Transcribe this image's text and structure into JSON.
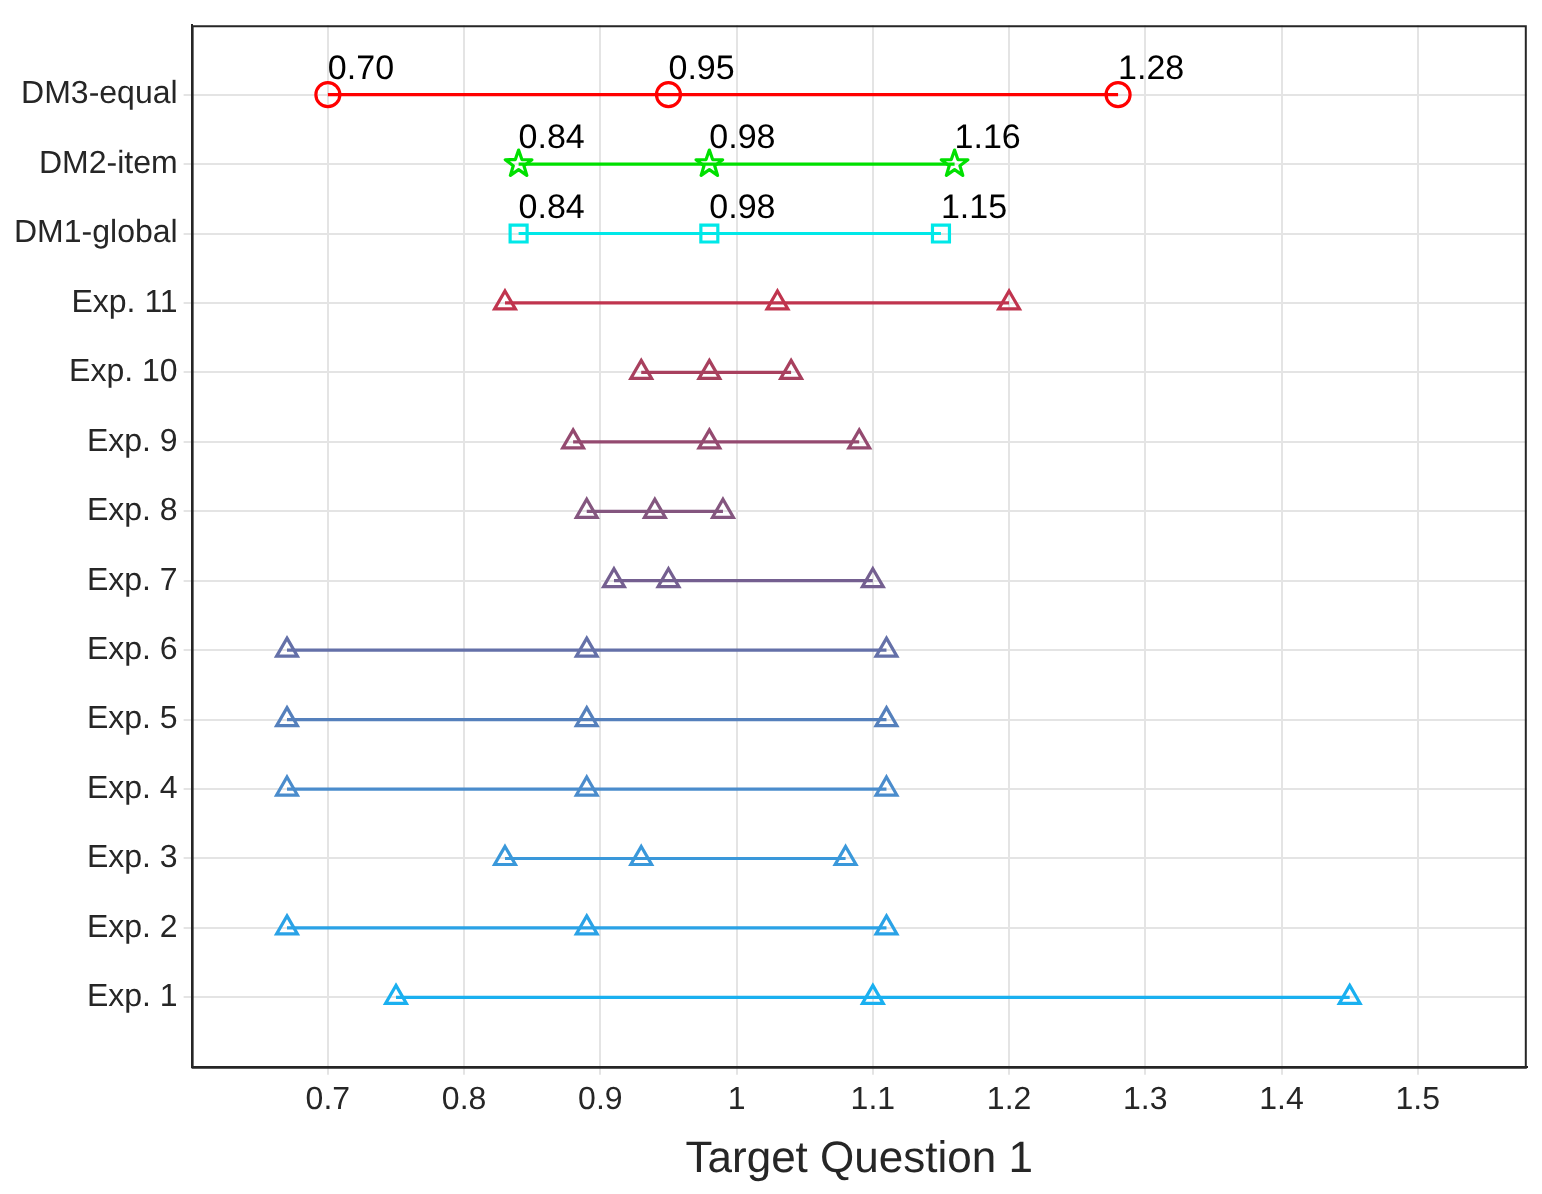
{
  "chart_data": {
    "type": "line",
    "orientation": "horizontal",
    "xlabel": "Target Question 1",
    "categories": [
      "DM3-equal",
      "DM2-item",
      "DM1-global",
      "Exp. 11",
      "Exp. 10",
      "Exp. 9",
      "Exp. 8",
      "Exp. 7",
      "Exp. 6",
      "Exp. 5",
      "Exp. 4",
      "Exp. 3",
      "Exp. 2",
      "Exp. 1"
    ],
    "xlim": [
      0.6,
      1.58
    ],
    "xticks": [
      0.7,
      0.8,
      0.9,
      1,
      1.1,
      1.2,
      1.3,
      1.4,
      1.5
    ],
    "grid": true,
    "legend": false,
    "series": [
      {
        "marker": "circle",
        "color": "#ff0000",
        "x": [
          "DM3-equal",
          "DM3-equal",
          "DM3-equal"
        ],
        "values": [
          0.7,
          0.95,
          1.28
        ]
      },
      {
        "marker": "star",
        "color": "#00e000",
        "x": [
          "DM2-item",
          "DM2-item",
          "DM2-item"
        ],
        "values": [
          0.84,
          0.98,
          1.16
        ]
      },
      {
        "marker": "square",
        "color": "#00e8e8",
        "x": [
          "DM1-global",
          "DM1-global",
          "DM1-global"
        ],
        "values": [
          0.84,
          0.98,
          1.15
        ]
      },
      {
        "marker": "triangle",
        "color": "#c0344e",
        "x": [
          "Exp. 11",
          "Exp. 11",
          "Exp. 11"
        ],
        "values": [
          0.83,
          1.03,
          1.2
        ]
      },
      {
        "marker": "triangle",
        "color": "#a8405e",
        "x": [
          "Exp. 10",
          "Exp. 10",
          "Exp. 10"
        ],
        "values": [
          0.93,
          0.98,
          1.04
        ]
      },
      {
        "marker": "triangle",
        "color": "#944a70",
        "x": [
          "Exp. 9",
          "Exp. 9",
          "Exp. 9"
        ],
        "values": [
          0.88,
          0.98,
          1.09
        ]
      },
      {
        "marker": "triangle",
        "color": "#84567f",
        "x": [
          "Exp. 8",
          "Exp. 8",
          "Exp. 8"
        ],
        "values": [
          0.89,
          0.94,
          0.99
        ]
      },
      {
        "marker": "triangle",
        "color": "#745f90",
        "x": [
          "Exp. 7",
          "Exp. 7",
          "Exp. 7"
        ],
        "values": [
          0.91,
          0.95,
          1.1
        ]
      },
      {
        "marker": "triangle",
        "color": "#6470a8",
        "x": [
          "Exp. 6",
          "Exp. 6",
          "Exp. 6"
        ],
        "values": [
          0.67,
          0.89,
          1.11
        ]
      },
      {
        "marker": "triangle",
        "color": "#5580bc",
        "x": [
          "Exp. 5",
          "Exp. 5",
          "Exp. 5"
        ],
        "values": [
          0.67,
          0.89,
          1.11
        ]
      },
      {
        "marker": "triangle",
        "color": "#4a8ccc",
        "x": [
          "Exp. 4",
          "Exp. 4",
          "Exp. 4"
        ],
        "values": [
          0.67,
          0.89,
          1.11
        ]
      },
      {
        "marker": "triangle",
        "color": "#3a98da",
        "x": [
          "Exp. 3",
          "Exp. 3",
          "Exp. 3"
        ],
        "values": [
          0.83,
          0.93,
          1.08
        ]
      },
      {
        "marker": "triangle",
        "color": "#2aa2e6",
        "x": [
          "Exp. 2",
          "Exp. 2",
          "Exp. 2"
        ],
        "values": [
          0.67,
          0.89,
          1.11
        ]
      },
      {
        "marker": "triangle",
        "color": "#1ab0f0",
        "x": [
          "Exp. 1",
          "Exp. 1",
          "Exp. 1"
        ],
        "values": [
          0.75,
          1.1,
          1.45
        ]
      }
    ],
    "annotations": [
      {
        "text": "0.70",
        "x": 0.7,
        "y": "DM3-equal"
      },
      {
        "text": "0.95",
        "x": 0.95,
        "y": "DM3-equal"
      },
      {
        "text": "1.28",
        "x": 1.28,
        "y": "DM3-equal"
      },
      {
        "text": "0.84",
        "x": 0.84,
        "y": "DM2-item"
      },
      {
        "text": "0.98",
        "x": 0.98,
        "y": "DM2-item"
      },
      {
        "text": "1.16",
        "x": 1.16,
        "y": "DM2-item"
      },
      {
        "text": "0.84",
        "x": 0.84,
        "y": "DM1-global"
      },
      {
        "text": "0.98",
        "x": 0.98,
        "y": "DM1-global"
      },
      {
        "text": "1.15",
        "x": 1.15,
        "y": "DM1-global"
      }
    ]
  }
}
